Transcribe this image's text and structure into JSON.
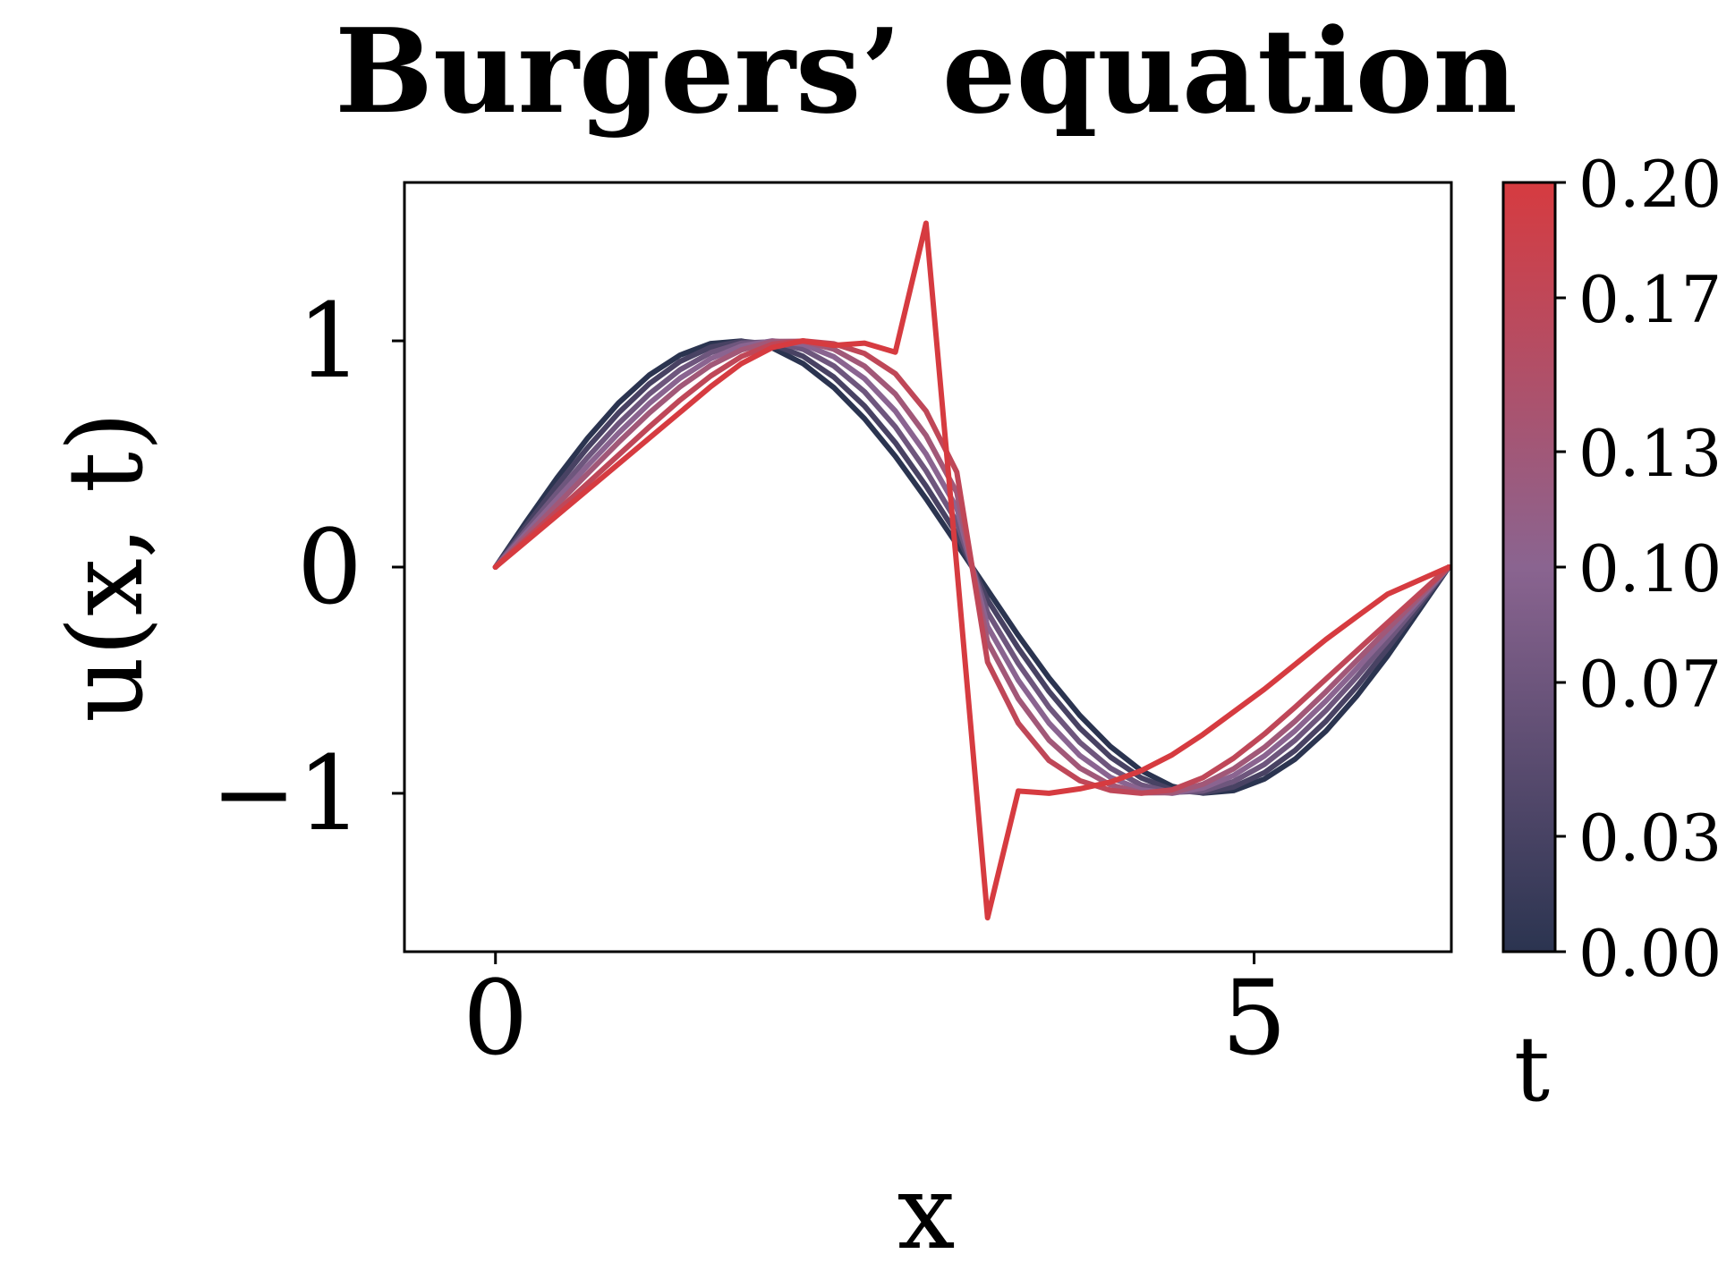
{
  "chart_data": {
    "type": "line",
    "title": "Burgers’ equation",
    "xlabel": "x",
    "ylabel": "u(x, t)",
    "xlim": [
      -0.6,
      6.3
    ],
    "ylim": [
      -1.7,
      1.7
    ],
    "xticks": [
      0,
      5
    ],
    "xtick_labels": [
      "0",
      "5"
    ],
    "yticks": [
      -1,
      0,
      1
    ],
    "ytick_labels": [
      "−1",
      "0",
      "1"
    ],
    "grid": false,
    "colorbar": {
      "label": "t",
      "range": [
        0.0,
        0.2
      ],
      "ticks": [
        0.0,
        0.03,
        0.07,
        0.1,
        0.13,
        0.17,
        0.2
      ],
      "tick_labels": [
        "0.00",
        "0.03",
        "0.07",
        "0.10",
        "0.13",
        "0.17",
        "0.20"
      ],
      "colors": [
        "#2b3450",
        "#8a6490",
        "#d63b40"
      ]
    },
    "x": [
      0.0,
      0.2027,
      0.4054,
      0.6081,
      0.8108,
      1.0135,
      1.2162,
      1.4189,
      1.6216,
      1.8243,
      2.027,
      2.2297,
      2.4324,
      2.6351,
      2.8378,
      3.0405,
      3.2432,
      3.4459,
      3.6486,
      3.8513,
      4.054,
      4.2567,
      4.4594,
      4.6621,
      4.8648,
      5.0675,
      5.2702,
      5.4729,
      5.6756,
      5.8783,
      6.2832
    ],
    "series": [
      {
        "t": 0.0,
        "values": [
          0.0,
          0.201,
          0.394,
          0.571,
          0.725,
          0.849,
          0.937,
          0.988,
          0.999,
          0.969,
          0.9,
          0.794,
          0.656,
          0.49,
          0.302,
          0.101,
          -0.101,
          -0.302,
          -0.49,
          -0.656,
          -0.794,
          -0.9,
          -0.969,
          -0.999,
          -0.988,
          -0.937,
          -0.849,
          -0.725,
          -0.571,
          -0.394,
          0.0
        ]
      },
      {
        "t": 0.03,
        "values": [
          0.0,
          0.183,
          0.361,
          0.529,
          0.681,
          0.81,
          0.909,
          0.972,
          0.998,
          0.985,
          0.932,
          0.84,
          0.712,
          0.55,
          0.358,
          0.145,
          -0.145,
          -0.358,
          -0.55,
          -0.712,
          -0.84,
          -0.932,
          -0.985,
          -0.998,
          -0.972,
          -0.909,
          -0.81,
          -0.681,
          -0.529,
          -0.361,
          0.0
        ]
      },
      {
        "t": 0.07,
        "values": [
          0.0,
          0.165,
          0.328,
          0.486,
          0.634,
          0.765,
          0.872,
          0.948,
          0.99,
          0.996,
          0.963,
          0.889,
          0.775,
          0.62,
          0.426,
          0.2,
          -0.2,
          -0.426,
          -0.62,
          -0.775,
          -0.889,
          -0.963,
          -0.996,
          -0.99,
          -0.948,
          -0.872,
          -0.765,
          -0.634,
          -0.486,
          -0.328,
          0.0
        ]
      },
      {
        "t": 0.1,
        "values": [
          0.0,
          0.151,
          0.301,
          0.449,
          0.592,
          0.723,
          0.835,
          0.921,
          0.977,
          1.0,
          0.985,
          0.93,
          0.833,
          0.69,
          0.5,
          0.262,
          -0.262,
          -0.5,
          -0.69,
          -0.833,
          -0.93,
          -0.985,
          -1.0,
          -0.977,
          -0.921,
          -0.835,
          -0.723,
          -0.592,
          -0.449,
          -0.301,
          0.0
        ]
      },
      {
        "t": 0.13,
        "values": [
          0.0,
          0.138,
          0.276,
          0.414,
          0.551,
          0.681,
          0.797,
          0.892,
          0.96,
          0.997,
          0.998,
          0.963,
          0.888,
          0.765,
          0.582,
          0.33,
          -0.33,
          -0.582,
          -0.765,
          -0.888,
          -0.963,
          -0.998,
          -0.997,
          -0.96,
          -0.892,
          -0.797,
          -0.681,
          -0.551,
          -0.414,
          -0.276,
          0.0
        ]
      },
      {
        "t": 0.17,
        "values": [
          0.0,
          0.123,
          0.247,
          0.371,
          0.495,
          0.619,
          0.738,
          0.845,
          0.931,
          0.985,
          1.0,
          0.987,
          0.944,
          0.855,
          0.69,
          0.42,
          -0.42,
          -0.69,
          -0.855,
          -0.944,
          -0.987,
          -1.0,
          -0.985,
          -0.931,
          -0.845,
          -0.738,
          -0.619,
          -0.495,
          -0.371,
          -0.247,
          0.0
        ]
      },
      {
        "t": 0.2,
        "values": [
          0.0,
          0.114,
          0.228,
          0.342,
          0.456,
          0.57,
          0.684,
          0.798,
          0.9,
          0.97,
          1.0,
          0.98,
          0.99,
          0.95,
          1.52,
          0.0,
          -1.55,
          -0.99,
          -1.0,
          -0.98,
          -0.95,
          -0.9,
          -0.83,
          -0.74,
          -0.64,
          -0.54,
          -0.43,
          -0.32,
          -0.22,
          -0.12,
          0.0
        ]
      }
    ]
  }
}
